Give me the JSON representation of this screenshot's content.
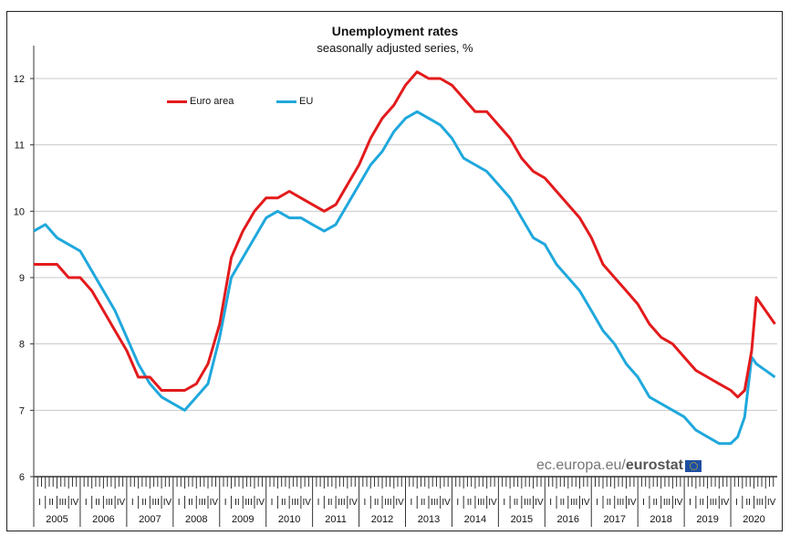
{
  "chart_data": {
    "type": "line",
    "title": "Unemployment rates",
    "subtitle": "seasonally adjusted series, %",
    "xlabel": "",
    "ylabel": "",
    "ylim": [
      6,
      12.5
    ],
    "yticks": [
      "6",
      "7",
      "8",
      "9",
      "10",
      "11",
      "12"
    ],
    "xlim": [
      2005,
      2021
    ],
    "years": [
      "2005",
      "2006",
      "2007",
      "2008",
      "2009",
      "2010",
      "2011",
      "2012",
      "2013",
      "2014",
      "2015",
      "2016",
      "2017",
      "2018",
      "2019",
      "2020"
    ],
    "quarter_labels": [
      "I",
      "II",
      "III",
      "IV"
    ],
    "grid": true,
    "legend_position": "top-left",
    "source": "ec.europa.eu/eurostat",
    "x": [
      2005.0,
      2005.25,
      2005.5,
      2005.75,
      2006.0,
      2006.25,
      2006.5,
      2006.75,
      2007.0,
      2007.25,
      2007.5,
      2007.75,
      2008.0,
      2008.25,
      2008.5,
      2008.75,
      2009.0,
      2009.25,
      2009.5,
      2009.75,
      2010.0,
      2010.25,
      2010.5,
      2010.75,
      2011.0,
      2011.25,
      2011.5,
      2011.75,
      2012.0,
      2012.25,
      2012.5,
      2012.75,
      2013.0,
      2013.25,
      2013.5,
      2013.75,
      2014.0,
      2014.25,
      2014.5,
      2014.75,
      2015.0,
      2015.25,
      2015.5,
      2015.75,
      2016.0,
      2016.25,
      2016.5,
      2016.75,
      2017.0,
      2017.25,
      2017.5,
      2017.75,
      2018.0,
      2018.25,
      2018.5,
      2018.75,
      2019.0,
      2019.25,
      2019.5,
      2019.75,
      2020.0,
      2020.15,
      2020.3,
      2020.45,
      2020.55,
      2020.75,
      2020.95
    ],
    "series": [
      {
        "name": "Euro area",
        "color": "#e31a1c",
        "values": [
          9.2,
          9.2,
          9.2,
          9.0,
          9.0,
          8.8,
          8.5,
          8.2,
          7.9,
          7.5,
          7.5,
          7.3,
          7.3,
          7.3,
          7.4,
          7.7,
          8.3,
          9.3,
          9.7,
          10.0,
          10.2,
          10.2,
          10.3,
          10.2,
          10.1,
          10.0,
          10.1,
          10.4,
          10.7,
          11.1,
          11.4,
          11.6,
          11.9,
          12.1,
          12.0,
          12.0,
          11.9,
          11.7,
          11.5,
          11.5,
          11.3,
          11.1,
          10.8,
          10.6,
          10.5,
          10.3,
          10.1,
          9.9,
          9.6,
          9.2,
          9.0,
          8.8,
          8.6,
          8.3,
          8.1,
          8.0,
          7.8,
          7.6,
          7.5,
          7.4,
          7.3,
          7.2,
          7.3,
          7.9,
          8.7,
          8.5,
          8.3
        ]
      },
      {
        "name": "EU",
        "color": "#1fa8dc",
        "values": [
          9.7,
          9.8,
          9.6,
          9.5,
          9.4,
          9.1,
          8.8,
          8.5,
          8.1,
          7.7,
          7.4,
          7.2,
          7.1,
          7.0,
          7.2,
          7.4,
          8.1,
          9.0,
          9.3,
          9.6,
          9.9,
          10.0,
          9.9,
          9.9,
          9.8,
          9.7,
          9.8,
          10.1,
          10.4,
          10.7,
          10.9,
          11.2,
          11.4,
          11.5,
          11.4,
          11.3,
          11.1,
          10.8,
          10.7,
          10.6,
          10.4,
          10.2,
          9.9,
          9.6,
          9.5,
          9.2,
          9.0,
          8.8,
          8.5,
          8.2,
          8.0,
          7.7,
          7.5,
          7.2,
          7.1,
          7.0,
          6.9,
          6.7,
          6.6,
          6.5,
          6.5,
          6.6,
          6.9,
          7.8,
          7.7,
          7.6,
          7.5
        ]
      }
    ]
  }
}
